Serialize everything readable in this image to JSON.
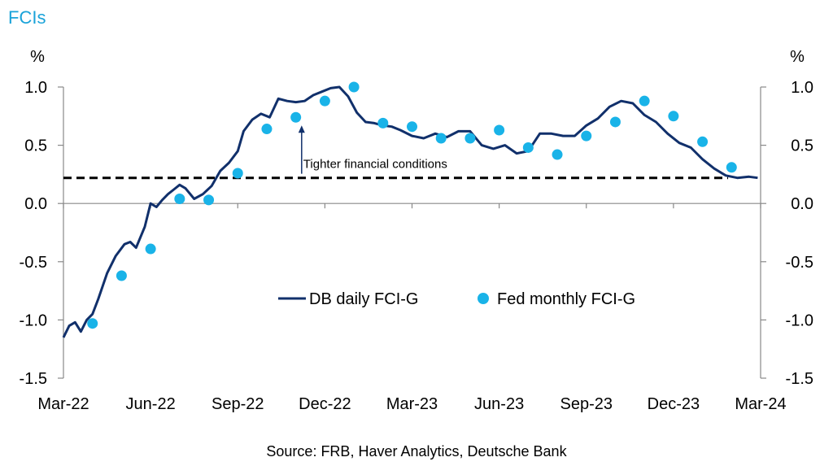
{
  "chart_title": "FCIs",
  "source": "Source: FRB, Haver Analytics, Deutsche Bank",
  "colors": {
    "daily_line": "#11306b",
    "monthly_dots": "#19b3e8",
    "title": "#1aa3d9",
    "axis": "#888888",
    "threshold": "#000000"
  },
  "chart_data": {
    "type": "line",
    "title": "FCIs",
    "ylabel_left": "%",
    "ylabel_right": "%",
    "ylim": [
      -1.5,
      1.0
    ],
    "yticks": [
      "1.0",
      "0.5",
      "0.0",
      "-0.5",
      "-1.0",
      "-1.5"
    ],
    "ytick_values": [
      1.0,
      0.5,
      0.0,
      -0.5,
      -1.0,
      -1.5
    ],
    "xticks": [
      "Mar-22",
      "Jun-22",
      "Sep-22",
      "Dec-22",
      "Mar-23",
      "Jun-23",
      "Sep-23",
      "Dec-23",
      "Mar-24"
    ],
    "xtick_values": [
      0,
      3,
      6,
      9,
      12,
      15,
      18,
      21,
      24
    ],
    "grid": false,
    "legend_position": "center-right",
    "series": [
      {
        "name": "DB daily FCI-G",
        "kind": "line",
        "x": [
          0.0,
          0.2,
          0.4,
          0.6,
          0.8,
          1.0,
          1.2,
          1.5,
          1.8,
          2.1,
          2.3,
          2.5,
          2.8,
          3.0,
          3.2,
          3.4,
          3.6,
          3.8,
          4.0,
          4.2,
          4.5,
          4.8,
          5.1,
          5.4,
          5.7,
          6.0,
          6.2,
          6.5,
          6.8,
          7.1,
          7.4,
          7.7,
          8.0,
          8.3,
          8.6,
          8.9,
          9.2,
          9.5,
          9.8,
          10.1,
          10.4,
          10.7,
          11.0,
          11.3,
          11.6,
          12.0,
          12.4,
          12.8,
          13.2,
          13.6,
          14.0,
          14.4,
          14.8,
          15.2,
          15.6,
          16.0,
          16.4,
          16.8,
          17.2,
          17.6,
          18.0,
          18.4,
          18.8,
          19.2,
          19.6,
          20.0,
          20.4,
          20.8,
          21.2,
          21.6,
          22.0,
          22.4,
          22.8,
          23.2,
          23.6,
          23.9
        ],
        "values": [
          -1.15,
          -1.05,
          -1.02,
          -1.1,
          -1.0,
          -0.95,
          -0.82,
          -0.6,
          -0.45,
          -0.35,
          -0.33,
          -0.38,
          -0.2,
          0.0,
          -0.03,
          0.03,
          0.08,
          0.12,
          0.16,
          0.13,
          0.04,
          0.08,
          0.15,
          0.28,
          0.35,
          0.45,
          0.62,
          0.72,
          0.77,
          0.74,
          0.9,
          0.88,
          0.87,
          0.88,
          0.93,
          0.96,
          0.99,
          1.0,
          0.92,
          0.78,
          0.7,
          0.69,
          0.67,
          0.66,
          0.63,
          0.58,
          0.56,
          0.6,
          0.57,
          0.62,
          0.62,
          0.5,
          0.47,
          0.5,
          0.43,
          0.45,
          0.6,
          0.6,
          0.58,
          0.58,
          0.67,
          0.73,
          0.83,
          0.88,
          0.86,
          0.76,
          0.7,
          0.6,
          0.52,
          0.48,
          0.38,
          0.3,
          0.24,
          0.22,
          0.23,
          0.22
        ]
      },
      {
        "name": "Fed monthly FCI-G",
        "kind": "scatter",
        "x": [
          1,
          2,
          3,
          4,
          5,
          6,
          7,
          8,
          9,
          10,
          11,
          12,
          13,
          14,
          15,
          16,
          17,
          18,
          19,
          20,
          21,
          22,
          23
        ],
        "values": [
          -1.03,
          -0.62,
          -0.39,
          0.04,
          0.03,
          0.26,
          0.64,
          0.74,
          0.88,
          1.0,
          0.69,
          0.66,
          0.56,
          0.56,
          0.63,
          0.48,
          0.42,
          0.58,
          0.7,
          0.88,
          0.75,
          0.53,
          0.31
        ]
      }
    ],
    "reference_line": {
      "value": 0.22,
      "style": "dashed"
    },
    "annotation": {
      "text": "Tighter financial conditions",
      "x": 8.2,
      "y": 0.36,
      "arrow_to": 0.67
    }
  }
}
